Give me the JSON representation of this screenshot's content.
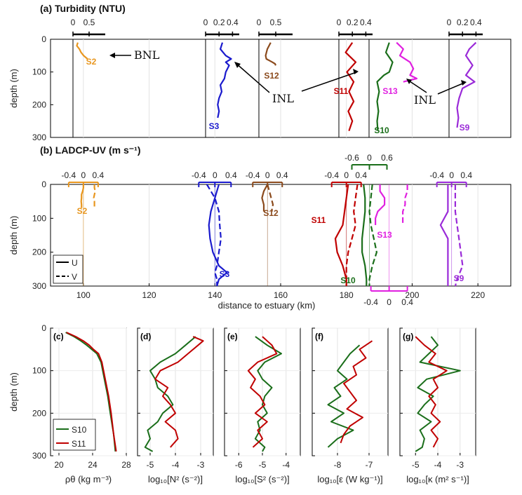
{
  "chart_data": [
    {
      "panel": "a",
      "type": "line",
      "title": "(a) Turbidity (NTU)",
      "ylabel": "depth (m)",
      "ylim": [
        0,
        300
      ],
      "y_ticks": [
        "0",
        "100",
        "200",
        "300"
      ],
      "annotations": [
        "BNL",
        "INL",
        "INL",
        "INL"
      ],
      "series": [
        {
          "name": "S2",
          "color": "#e8961e",
          "scale_ticks": [
            "0",
            "0.5"
          ],
          "depth": [
            10,
            20,
            30,
            40,
            50,
            60
          ],
          "values": [
            0.15,
            0.12,
            0.2,
            0.25,
            0.33,
            0.45
          ]
        },
        {
          "name": "S3",
          "color": "#1a1acd",
          "scale_ticks": [
            "0",
            "0.2",
            "0.4"
          ],
          "depth": [
            10,
            30,
            50,
            60,
            70,
            80,
            100,
            120,
            140,
            160,
            180,
            200,
            220,
            240
          ],
          "values": [
            0.25,
            0.22,
            0.3,
            0.38,
            0.3,
            0.35,
            0.3,
            0.28,
            0.22,
            0.24,
            0.2,
            0.18,
            0.2,
            0.18
          ]
        },
        {
          "name": "S12",
          "color": "#8b4a1c",
          "scale_ticks": [
            "0",
            "0.5"
          ],
          "depth": [
            10,
            30,
            50,
            60,
            70,
            75,
            80
          ],
          "values": [
            0.35,
            0.25,
            0.2,
            0.22,
            0.4,
            0.48,
            0.5
          ]
        },
        {
          "name": "S11",
          "color": "#c00000",
          "scale_ticks": [
            "0",
            "0.2",
            "0.4"
          ],
          "depth": [
            10,
            40,
            70,
            100,
            130,
            160,
            190,
            220,
            250,
            280
          ],
          "values": [
            0.2,
            0.1,
            0.25,
            0.12,
            0.22,
            0.15,
            0.22,
            0.14,
            0.2,
            0.15
          ]
        },
        {
          "name": "S10",
          "color": "#1a6e1a",
          "scale_ticks": [
            "0",
            "0.2",
            "0.4"
          ],
          "depth": [
            10,
            40,
            70,
            100,
            110,
            130,
            160,
            190,
            220,
            250,
            280
          ],
          "values": [
            0.3,
            0.25,
            0.35,
            0.3,
            0.22,
            0.12,
            0.15,
            0.12,
            0.14,
            0.12,
            0.13
          ]
        },
        {
          "name": "S13",
          "color": "#e020e0",
          "scale_ticks": [
            "0",
            "0.2",
            "0.4"
          ],
          "depth": [
            10,
            30,
            50,
            70,
            90,
            110,
            120,
            130
          ],
          "values": [
            0.2,
            0.3,
            0.25,
            0.4,
            0.45,
            0.4,
            0.5,
            0.3
          ]
        },
        {
          "name": "S9",
          "color": "#9a2ad8",
          "scale_ticks": [
            "0",
            "0.2",
            "0.4"
          ],
          "depth": [
            10,
            30,
            50,
            80,
            110,
            130,
            150,
            180,
            210,
            240,
            270
          ],
          "values": [
            0.4,
            0.3,
            0.25,
            0.35,
            0.25,
            0.38,
            0.2,
            0.15,
            0.12,
            0.14,
            0.12
          ]
        }
      ]
    },
    {
      "panel": "b",
      "type": "line",
      "title": "(b) LADCP-UV (m s⁻¹)",
      "xlabel": "distance to estuary (km)",
      "ylabel": "depth (m)",
      "xlim": [
        90,
        230
      ],
      "x_ticks": [
        "100",
        "120",
        "140",
        "160",
        "180",
        "200",
        "220"
      ],
      "ylim": [
        0,
        300
      ],
      "y_ticks": [
        "0",
        "100",
        "200",
        "300"
      ],
      "legend": {
        "position": "bottom-left",
        "entries": [
          "U",
          "V"
        ]
      },
      "stations": [
        {
          "name": "S2",
          "color": "#e8961e",
          "distance_km": 100,
          "scale_ticks": [
            "-0.4",
            "0",
            "0.4"
          ],
          "depth": [
            0,
            10,
            20,
            30,
            40,
            50,
            60,
            70
          ],
          "U": [
            0,
            0,
            -0.02,
            -0.05,
            -0.05,
            -0.06,
            -0.05,
            -0.05
          ],
          "V": [
            0.3,
            0.3,
            0.32,
            0.3,
            0.28,
            0.3,
            0.3,
            0.3
          ]
        },
        {
          "name": "S3",
          "color": "#1a1acd",
          "distance_km": 140,
          "scale_ticks": [
            "-0.4",
            "0",
            "0.4"
          ],
          "depth": [
            0,
            40,
            80,
            120,
            160,
            200,
            240,
            260,
            280,
            300
          ],
          "U": [
            0.1,
            0.0,
            -0.1,
            -0.15,
            -0.12,
            -0.05,
            0.1,
            0.3,
            0.1,
            0.05
          ],
          "V": [
            -0.2,
            0.0,
            0.1,
            0.12,
            0.15,
            0.1,
            0.05,
            0.0,
            0.05,
            0.05
          ]
        },
        {
          "name": "S12",
          "color": "#8b4a1c",
          "distance_km": 156,
          "scale_ticks": [
            "-0.4",
            "0",
            "0.4"
          ],
          "depth": [
            0,
            20,
            40,
            60,
            70,
            80
          ],
          "U": [
            0.0,
            -0.1,
            -0.15,
            -0.1,
            -0.1,
            -0.1
          ],
          "V": [
            0.0,
            0.05,
            0.1,
            0.15,
            0.12,
            0.12
          ]
        },
        {
          "name": "S11",
          "color": "#c00000",
          "distance_km": 180,
          "scale_ticks": [
            "-0.4",
            "0",
            "0.4"
          ],
          "depth": [
            0,
            40,
            80,
            120,
            160,
            200,
            240,
            280,
            300
          ],
          "U": [
            0.05,
            0.0,
            -0.05,
            -0.1,
            -0.3,
            -0.25,
            -0.1,
            0.0,
            0.0
          ],
          "V": [
            0.3,
            0.25,
            0.2,
            0.25,
            0.15,
            0.05,
            0.0,
            0.0,
            0.0
          ]
        },
        {
          "name": "S10",
          "color": "#1a6e1a",
          "distance_km": 187,
          "scale_ticks": [
            "-0.6",
            "0",
            "0.6"
          ],
          "depth": [
            0,
            40,
            80,
            120,
            160,
            200,
            240,
            280,
            300
          ],
          "U": [
            -0.2,
            -0.15,
            -0.15,
            -0.2,
            -0.25,
            -0.25,
            -0.15,
            -0.1,
            -0.1
          ],
          "V": [
            0.1,
            0.05,
            0.0,
            0.05,
            0.15,
            0.25,
            0.1,
            0.0,
            0.0
          ]
        },
        {
          "name": "S13",
          "color": "#e020e0",
          "distance_km": 193,
          "scale_ticks": [
            "-0.4",
            "0",
            "0.4"
          ],
          "depth": [
            0,
            20,
            40,
            60,
            80,
            100,
            120
          ],
          "U": [
            -0.2,
            -0.2,
            -0.1,
            -0.1,
            -0.25,
            -0.3,
            -0.3
          ],
          "V": [
            0.4,
            0.4,
            0.35,
            0.35,
            0.3,
            0.3,
            0.3
          ]
        },
        {
          "name": "S9",
          "color": "#9a2ad8",
          "distance_km": 212,
          "scale_ticks": [
            "-0.4",
            "0",
            "0.4"
          ],
          "depth": [
            0,
            80,
            120,
            160,
            200,
            240,
            280,
            300
          ],
          "U": [
            -0.1,
            -0.1,
            -0.3,
            -0.1,
            -0.1,
            -0.1,
            -0.1,
            -0.1
          ],
          "V": [
            0.1,
            0.1,
            0.15,
            0.2,
            0.25,
            0.3,
            0.15,
            0.1
          ]
        }
      ]
    },
    {
      "panel": "c",
      "type": "line",
      "title": "(c)",
      "xlabel": "ρθ (kg m⁻³)",
      "ylabel": "depth (m)",
      "xlim": [
        19,
        28
      ],
      "x_ticks": [
        "20",
        "24",
        "28"
      ],
      "ylim": [
        0,
        300
      ],
      "y_ticks": [
        "0",
        "100",
        "200",
        "300"
      ],
      "legend": {
        "position": "bottom-left",
        "entries": [
          "S10",
          "S11"
        ]
      },
      "series": [
        {
          "name": "S10",
          "color": "#1a6e1a",
          "depth": [
            10,
            20,
            30,
            40,
            50,
            60,
            80,
            100,
            130,
            160,
            200,
            250,
            290
          ],
          "values": [
            20.8,
            21.8,
            22.6,
            23.3,
            23.9,
            24.5,
            25.0,
            25.2,
            25.5,
            25.8,
            26.1,
            26.5,
            26.7
          ]
        },
        {
          "name": "S11",
          "color": "#c00000",
          "depth": [
            10,
            20,
            30,
            40,
            50,
            60,
            80,
            100,
            130,
            160,
            200,
            250,
            290
          ],
          "values": [
            20.9,
            22.0,
            22.9,
            23.6,
            24.1,
            24.7,
            25.1,
            25.3,
            25.6,
            25.9,
            26.2,
            26.5,
            26.8
          ]
        }
      ]
    },
    {
      "panel": "d",
      "type": "line",
      "title": "(d)",
      "xlabel": "log₁₀[N² (s⁻²)]",
      "xlim": [
        -5.5,
        -2.5
      ],
      "x_ticks": [
        "-5",
        "-4",
        "-3"
      ],
      "ylim": [
        0,
        300
      ],
      "series": [
        {
          "name": "S10",
          "color": "#1a6e1a",
          "depth": [
            20,
            40,
            60,
            80,
            100,
            120,
            140,
            160,
            180,
            200,
            220,
            240,
            260,
            280,
            290
          ],
          "values": [
            -3.2,
            -3.6,
            -4.0,
            -4.6,
            -5.0,
            -4.8,
            -4.7,
            -4.3,
            -4.1,
            -4.5,
            -4.7,
            -5.1,
            -5.0,
            -5.2,
            -4.9
          ]
        },
        {
          "name": "S11",
          "color": "#c00000",
          "depth": [
            20,
            30,
            40,
            60,
            80,
            100,
            120,
            140,
            160,
            180,
            200,
            220,
            240,
            260,
            280
          ],
          "values": [
            -3.3,
            -2.9,
            -3.1,
            -3.5,
            -3.9,
            -4.6,
            -4.8,
            -4.3,
            -4.5,
            -4.2,
            -4.0,
            -4.4,
            -4.0,
            -3.9,
            -4.2
          ]
        }
      ]
    },
    {
      "panel": "e",
      "type": "line",
      "title": "(e)",
      "xlabel": "log₁₀[S² (s⁻²)]",
      "xlim": [
        -6.6,
        -3.4
      ],
      "x_ticks": [
        "-6",
        "-5",
        "-4"
      ],
      "ylim": [
        0,
        300
      ],
      "series": [
        {
          "name": "S10",
          "color": "#1a6e1a",
          "depth": [
            20,
            40,
            60,
            80,
            100,
            120,
            140,
            160,
            180,
            200,
            220,
            240,
            260,
            280,
            290
          ],
          "values": [
            -5.3,
            -4.8,
            -4.2,
            -4.9,
            -5.2,
            -5.0,
            -4.6,
            -4.9,
            -5.0,
            -4.8,
            -5.2,
            -5.1,
            -5.3,
            -4.9,
            -5.0
          ]
        },
        {
          "name": "S11",
          "color": "#c00000",
          "depth": [
            20,
            40,
            60,
            80,
            100,
            120,
            140,
            160,
            180,
            200,
            220,
            240,
            260,
            280
          ],
          "values": [
            -5.0,
            -4.6,
            -4.4,
            -5.2,
            -5.6,
            -5.3,
            -5.5,
            -5.1,
            -4.9,
            -5.3,
            -4.8,
            -5.2,
            -5.0,
            -5.4
          ]
        }
      ]
    },
    {
      "panel": "f",
      "type": "line",
      "title": "(f)",
      "xlabel": "log₁₀[ε (W kg⁻¹)]",
      "xlim": [
        -8.8,
        -6.4
      ],
      "x_ticks": [
        "-8",
        "-7"
      ],
      "ylim": [
        0,
        300
      ],
      "series": [
        {
          "name": "S10",
          "color": "#1a6e1a",
          "depth": [
            40,
            60,
            80,
            100,
            120,
            140,
            160,
            180,
            200,
            220,
            240,
            260,
            280
          ],
          "values": [
            -7.3,
            -7.6,
            -7.8,
            -8.0,
            -7.7,
            -8.1,
            -7.9,
            -8.3,
            -7.8,
            -8.2,
            -7.5,
            -8.0,
            -8.3
          ]
        },
        {
          "name": "S11",
          "color": "#c00000",
          "depth": [
            30,
            50,
            70,
            90,
            110,
            130,
            150,
            170,
            190,
            210,
            230,
            250,
            270
          ],
          "values": [
            -6.9,
            -7.3,
            -7.1,
            -7.5,
            -7.4,
            -7.8,
            -7.6,
            -7.4,
            -7.7,
            -7.2,
            -7.6,
            -7.8,
            -7.9
          ]
        }
      ]
    },
    {
      "panel": "g",
      "type": "line",
      "title": "(g)",
      "xlabel": "log₁₀[κ (m² s⁻¹)]",
      "xlim": [
        -5.7,
        -2.3
      ],
      "x_ticks": [
        "-5",
        "-4",
        "-3"
      ],
      "ylim": [
        0,
        300
      ],
      "series": [
        {
          "name": "S10",
          "color": "#1a6e1a",
          "depth": [
            20,
            40,
            60,
            80,
            100,
            120,
            140,
            160,
            180,
            200,
            220,
            240,
            260,
            280,
            290
          ],
          "values": [
            -4.3,
            -4.0,
            -4.4,
            -4.8,
            -3.0,
            -4.5,
            -4.9,
            -4.2,
            -4.6,
            -4.9,
            -4.3,
            -4.8,
            -4.6,
            -4.7,
            -5.0
          ]
        },
        {
          "name": "S11",
          "color": "#c00000",
          "depth": [
            20,
            40,
            60,
            80,
            100,
            120,
            140,
            160,
            180,
            200,
            220,
            240,
            260,
            280
          ],
          "values": [
            -5.0,
            -4.6,
            -4.1,
            -4.4,
            -3.6,
            -4.2,
            -4.0,
            -4.4,
            -4.1,
            -4.3,
            -3.9,
            -4.3,
            -4.0,
            -4.2
          ]
        }
      ]
    }
  ]
}
